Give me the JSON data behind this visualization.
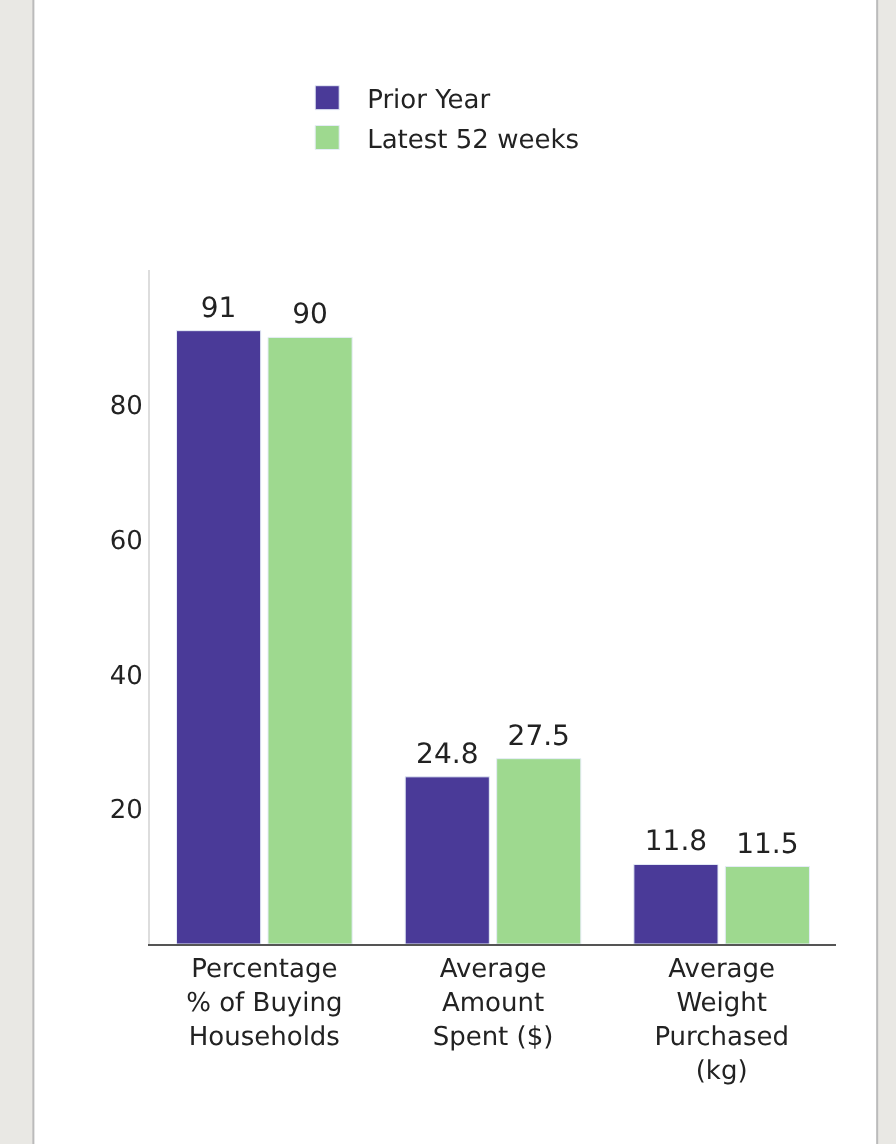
{
  "chart_data": {
    "type": "bar",
    "categories": [
      "Percentage\n% of Buying\nHouseholds",
      "Average\nAmount\nSpent ($)",
      "Average\nWeight\nPurchased\n(kg)"
    ],
    "series": [
      {
        "name": "Prior Year",
        "color": "#4a3a98",
        "values": [
          91,
          24.8,
          11.8
        ]
      },
      {
        "name": "Latest 52 weeks",
        "color": "#9ed98f",
        "values": [
          90,
          27.5,
          11.5
        ]
      }
    ],
    "ylim": [
      0,
      100
    ],
    "yticks": [
      20,
      40,
      60,
      80
    ],
    "data_labels": true,
    "legend": "top"
  }
}
